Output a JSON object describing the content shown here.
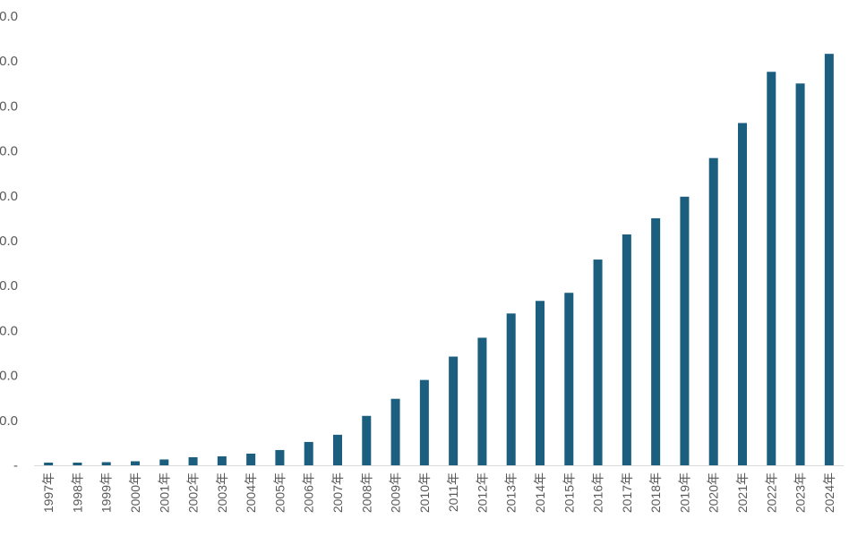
{
  "chart_data": {
    "type": "bar",
    "title": "",
    "xlabel": "",
    "ylabel": "",
    "ylim": [
      0,
      50
    ],
    "y_tick_labels": [
      "-",
      "0.0",
      "0.0",
      "0.0",
      "0.0",
      "0.0",
      "0.0",
      "0.0",
      "0.0",
      "0.0",
      "0.0"
    ],
    "grid": false,
    "legend": "none",
    "bar_color": "#1B5E7E",
    "categories": [
      "1997年",
      "1998年",
      "1999年",
      "2000年",
      "2001年",
      "2002年",
      "2003年",
      "2004年",
      "2005年",
      "2006年",
      "2007年",
      "2008年",
      "2009年",
      "2010年",
      "2011年",
      "2012年",
      "2013年",
      "2014年",
      "2015年",
      "2016年",
      "2017年",
      "2018年",
      "2019年",
      "2020年",
      "2021年",
      "2022年",
      "2023年",
      "2024年"
    ],
    "values": [
      0.3,
      0.3,
      0.35,
      0.45,
      0.65,
      0.9,
      1.0,
      1.3,
      1.7,
      2.6,
      3.4,
      5.5,
      7.4,
      9.5,
      12.1,
      14.2,
      16.9,
      18.3,
      19.2,
      22.9,
      25.7,
      27.5,
      29.9,
      34.2,
      38.1,
      43.8,
      42.5,
      45.8
    ]
  }
}
